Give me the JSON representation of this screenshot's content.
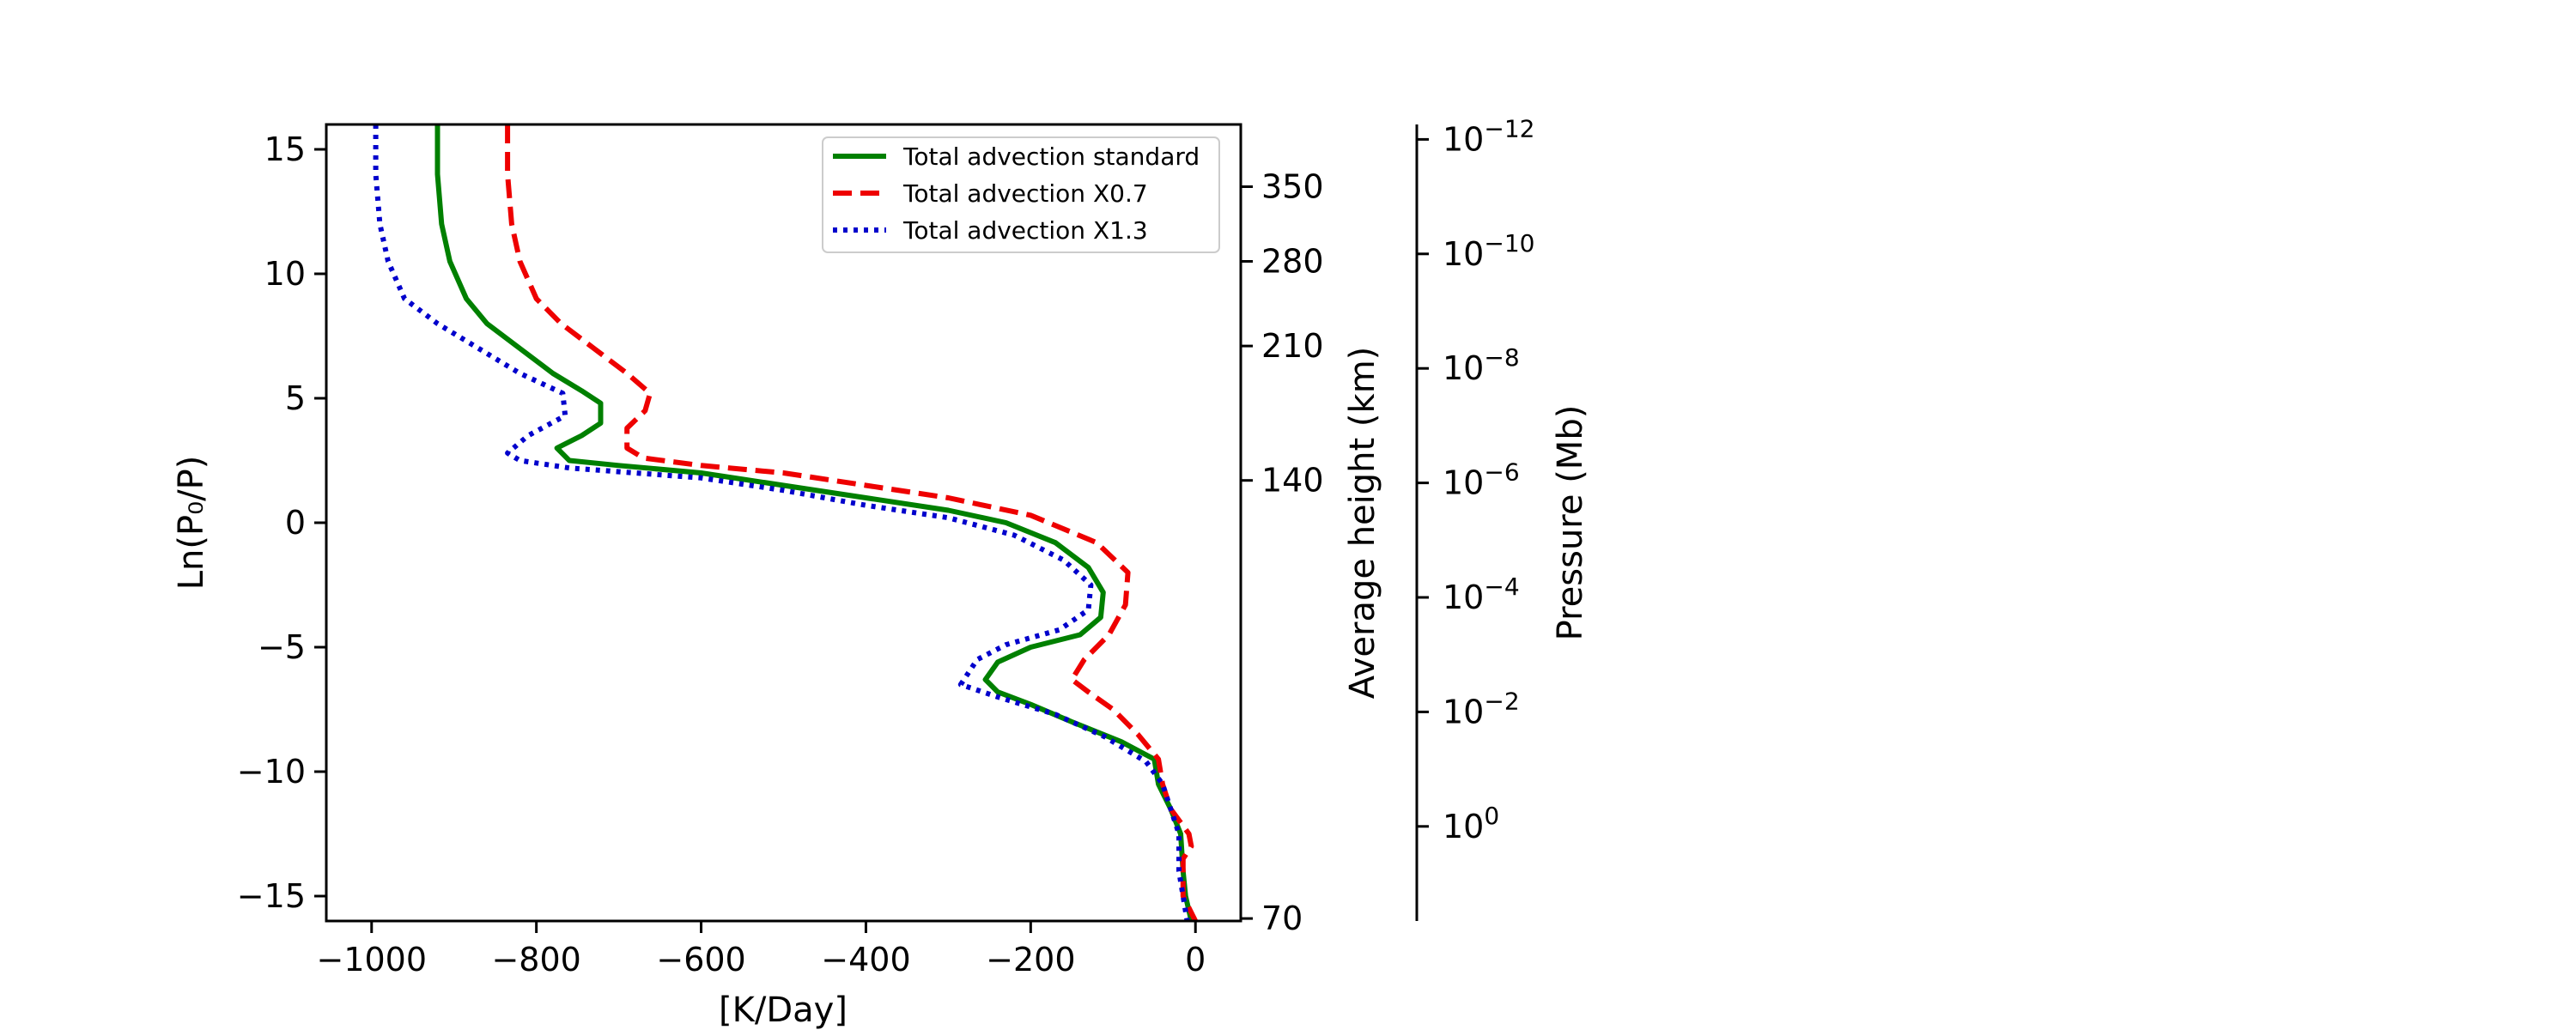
{
  "chart_data": {
    "type": "line",
    "title": "",
    "xlabel": "[K/Day]",
    "ylabel": "Ln(P₀/P)",
    "xlim": [
      -1055,
      55
    ],
    "ylim": [
      -16,
      16
    ],
    "x_ticks": [
      -1000,
      -800,
      -600,
      -400,
      -200,
      0
    ],
    "x_tick_labels": [
      "−1000",
      "−800",
      "−600",
      "−400",
      "−200",
      "0"
    ],
    "y_ticks": [
      15,
      10,
      5,
      0,
      -5,
      -10,
      -15
    ],
    "y_tick_labels": [
      "15",
      "10",
      "5",
      "0",
      "−5",
      "−10",
      "−15"
    ],
    "height_axis": {
      "label": "Average height (km)",
      "ticks": [
        {
          "label": "350",
          "lnp": 13.5
        },
        {
          "label": "280",
          "lnp": 10.5
        },
        {
          "label": "210",
          "lnp": 7.1
        },
        {
          "label": "140",
          "lnp": 1.7
        },
        {
          "label": "70",
          "lnp": -15.9
        }
      ]
    },
    "pressure_axis": {
      "label": "Pressure (Mb)",
      "ticks": [
        {
          "base": "10",
          "exp": "−12",
          "lnp": 15.4
        },
        {
          "base": "10",
          "exp": "−10",
          "lnp": 10.8
        },
        {
          "base": "10",
          "exp": "−8",
          "lnp": 6.2
        },
        {
          "base": "10",
          "exp": "−6",
          "lnp": 1.6
        },
        {
          "base": "10",
          "exp": "−4",
          "lnp": -3.0
        },
        {
          "base": "10",
          "exp": "−2",
          "lnp": -7.6
        },
        {
          "base": "10",
          "exp": "0",
          "lnp": -12.2
        }
      ]
    },
    "legend_position": "upper-right",
    "grid": false,
    "series": [
      {
        "name": "Total advection standard",
        "color": "#008000",
        "dash": "solid",
        "points": [
          [
            -920,
            16
          ],
          [
            -920,
            14
          ],
          [
            -915,
            12
          ],
          [
            -905,
            10.5
          ],
          [
            -885,
            9
          ],
          [
            -860,
            8
          ],
          [
            -820,
            7
          ],
          [
            -780,
            6
          ],
          [
            -745,
            5.3
          ],
          [
            -722,
            4.8
          ],
          [
            -722,
            4
          ],
          [
            -745,
            3.5
          ],
          [
            -775,
            3
          ],
          [
            -760,
            2.5
          ],
          [
            -700,
            2.3
          ],
          [
            -600,
            2
          ],
          [
            -500,
            1.5
          ],
          [
            -400,
            1
          ],
          [
            -300,
            0.5
          ],
          [
            -230,
            0
          ],
          [
            -170,
            -0.8
          ],
          [
            -130,
            -1.8
          ],
          [
            -112,
            -2.8
          ],
          [
            -115,
            -3.8
          ],
          [
            -140,
            -4.5
          ],
          [
            -200,
            -5
          ],
          [
            -240,
            -5.6
          ],
          [
            -255,
            -6.3
          ],
          [
            -240,
            -6.8
          ],
          [
            -200,
            -7.3
          ],
          [
            -150,
            -8
          ],
          [
            -90,
            -8.8
          ],
          [
            -50,
            -9.5
          ],
          [
            -45,
            -10.5
          ],
          [
            -30,
            -11.5
          ],
          [
            -18,
            -12.5
          ],
          [
            -15,
            -14
          ],
          [
            -12,
            -15
          ],
          [
            -5,
            -16
          ]
        ]
      },
      {
        "name": "Total advection X0.7",
        "color": "#ee0000",
        "dash": "dashed",
        "points": [
          [
            -835,
            16
          ],
          [
            -835,
            14
          ],
          [
            -830,
            12
          ],
          [
            -820,
            10.5
          ],
          [
            -800,
            9
          ],
          [
            -770,
            8
          ],
          [
            -730,
            7
          ],
          [
            -690,
            6
          ],
          [
            -662,
            5.2
          ],
          [
            -668,
            4.5
          ],
          [
            -690,
            3.8
          ],
          [
            -690,
            3
          ],
          [
            -670,
            2.6
          ],
          [
            -600,
            2.3
          ],
          [
            -500,
            2
          ],
          [
            -400,
            1.5
          ],
          [
            -300,
            1
          ],
          [
            -200,
            0.3
          ],
          [
            -120,
            -0.8
          ],
          [
            -82,
            -2
          ],
          [
            -85,
            -3.3
          ],
          [
            -105,
            -4.5
          ],
          [
            -135,
            -5.5
          ],
          [
            -150,
            -6.3
          ],
          [
            -130,
            -6.8
          ],
          [
            -100,
            -7.5
          ],
          [
            -70,
            -8.5
          ],
          [
            -45,
            -9.5
          ],
          [
            -40,
            -10.5
          ],
          [
            -30,
            -11.5
          ],
          [
            -8,
            -12.5
          ],
          [
            -5,
            -13
          ],
          [
            -15,
            -13.5
          ],
          [
            -15,
            -15
          ],
          [
            0,
            -16
          ]
        ]
      },
      {
        "name": "Total advection X1.3",
        "color": "#0000cc",
        "dash": "dotted",
        "points": [
          [
            -995,
            16
          ],
          [
            -995,
            14
          ],
          [
            -990,
            12
          ],
          [
            -980,
            10.5
          ],
          [
            -960,
            9
          ],
          [
            -920,
            8
          ],
          [
            -870,
            7
          ],
          [
            -820,
            6
          ],
          [
            -768,
            5.2
          ],
          [
            -765,
            4.3
          ],
          [
            -810,
            3.5
          ],
          [
            -835,
            2.8
          ],
          [
            -820,
            2.5
          ],
          [
            -760,
            2.2
          ],
          [
            -600,
            1.8
          ],
          [
            -500,
            1.3
          ],
          [
            -400,
            0.7
          ],
          [
            -300,
            0.2
          ],
          [
            -220,
            -0.5
          ],
          [
            -160,
            -1.5
          ],
          [
            -127,
            -2.5
          ],
          [
            -130,
            -3.5
          ],
          [
            -165,
            -4.3
          ],
          [
            -230,
            -4.9
          ],
          [
            -265,
            -5.5
          ],
          [
            -285,
            -6.5
          ],
          [
            -240,
            -7
          ],
          [
            -170,
            -7.7
          ],
          [
            -110,
            -8.6
          ],
          [
            -60,
            -9.6
          ],
          [
            -40,
            -10.5
          ],
          [
            -30,
            -11.5
          ],
          [
            -20,
            -12.5
          ],
          [
            -20,
            -14
          ],
          [
            -15,
            -15
          ],
          [
            -10,
            -16
          ]
        ]
      }
    ]
  }
}
